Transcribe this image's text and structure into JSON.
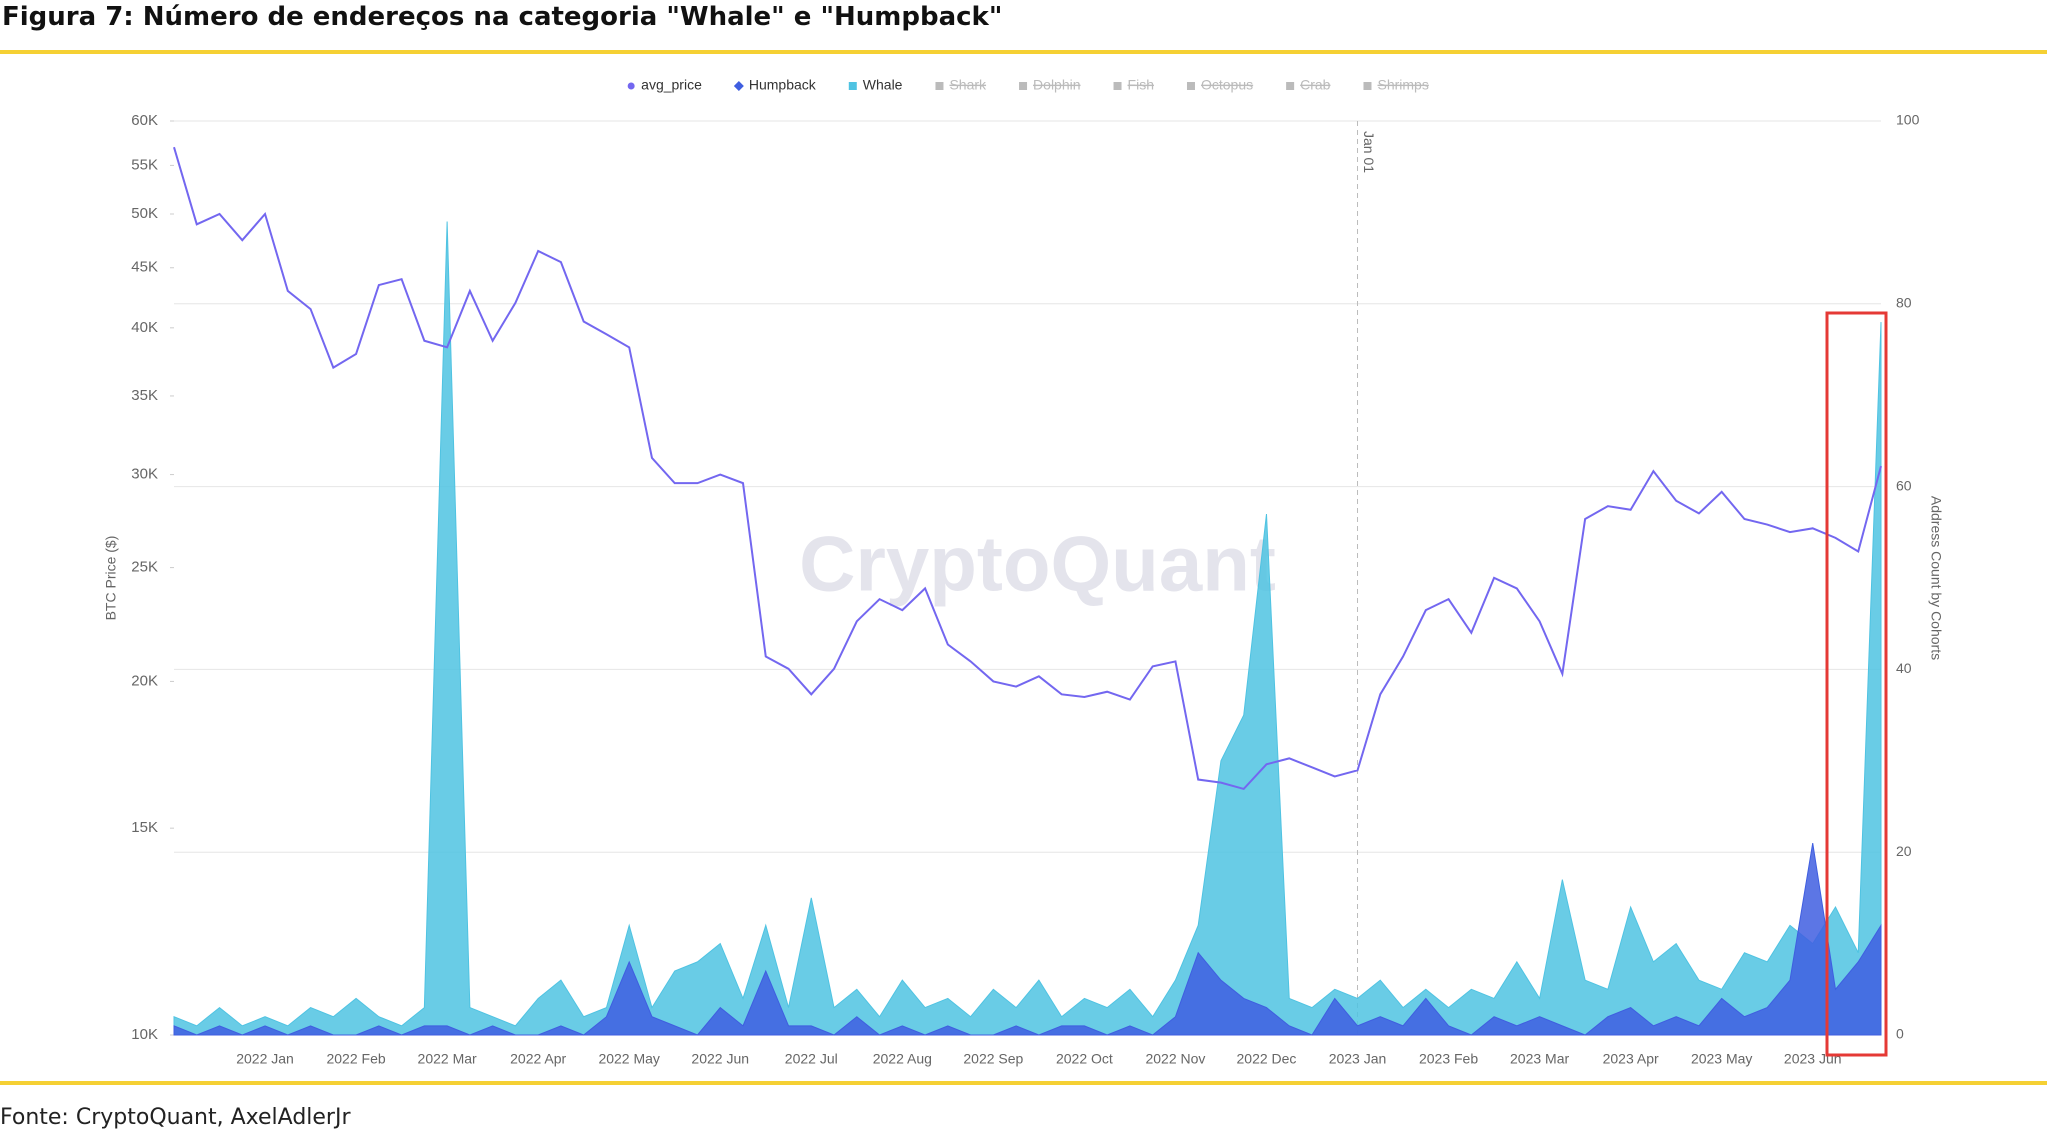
{
  "title": "Figura 7: Número de endereços na categoria \"Whale\" e \"Humpback\"",
  "source": "Fonte: CryptoQuant, AxelAdlerJr",
  "chart_data": {
    "type": "line-area",
    "watermark": "CryptoQuant",
    "ylabel": "BTC Price ($)",
    "y2label": "Address Count by Cohorts",
    "categories": [
      null,
      null,
      null,
      null,
      "2022 Jan",
      null,
      null,
      null,
      "2022 Feb",
      null,
      null,
      null,
      "2022 Mar",
      null,
      null,
      null,
      "2022 Apr",
      null,
      null,
      null,
      "2022 May",
      null,
      null,
      null,
      "2022 Jun",
      null,
      null,
      null,
      "2022 Jul",
      null,
      null,
      null,
      "2022 Aug",
      null,
      null,
      null,
      "2022 Sep",
      null,
      null,
      null,
      "2022 Oct",
      null,
      null,
      null,
      "2022 Nov",
      null,
      null,
      null,
      "2022 Dec",
      null,
      null,
      null,
      "2023 Jan",
      null,
      null,
      null,
      "2023 Feb",
      null,
      null,
      null,
      "2023 Mar",
      null,
      null,
      null,
      "2023 Apr",
      null,
      null,
      null,
      "2023 May",
      null,
      null,
      null,
      "2023 Jun",
      null,
      null,
      null
    ],
    "series": [
      {
        "name": "avg_price",
        "color": "#7367f0",
        "style": "line",
        "axis": "y",
        "values": [
          57000,
          49000,
          50000,
          47500,
          50000,
          43000,
          41500,
          37000,
          38000,
          43500,
          44000,
          39000,
          38500,
          43000,
          39000,
          42000,
          46500,
          45500,
          40500,
          39500,
          38500,
          31000,
          29500,
          29500,
          30000,
          29500,
          21000,
          20500,
          19500,
          20500,
          22500,
          23500,
          23000,
          24000,
          21500,
          20800,
          20000,
          19800,
          20200,
          19500,
          19400,
          19600,
          19300,
          20600,
          20800,
          16500,
          16400,
          16200,
          17000,
          17200,
          16900,
          16600,
          16800,
          19500,
          21000,
          23000,
          23500,
          22000,
          24500,
          24000,
          22500,
          20300,
          27500,
          28200,
          28000,
          30200,
          28500,
          27800,
          29000,
          27500,
          27200,
          26800,
          27000,
          26500,
          25800,
          30500
        ]
      },
      {
        "name": "Humpback",
        "color": "#3f5ee0",
        "style": "area",
        "axis": "y2",
        "values": [
          1,
          0,
          1,
          0,
          1,
          0,
          1,
          0,
          0,
          1,
          0,
          1,
          1,
          0,
          1,
          0,
          0,
          1,
          0,
          2,
          8,
          2,
          1,
          0,
          3,
          1,
          7,
          1,
          1,
          0,
          2,
          0,
          1,
          0,
          1,
          0,
          0,
          1,
          0,
          1,
          1,
          0,
          1,
          0,
          2,
          9,
          6,
          4,
          3,
          1,
          0,
          4,
          1,
          2,
          1,
          4,
          1,
          0,
          2,
          1,
          2,
          1,
          0,
          2,
          3,
          1,
          2,
          1,
          4,
          2,
          3,
          6,
          21,
          5,
          8,
          12
        ]
      },
      {
        "name": "Whale",
        "color": "#4fc3e2",
        "style": "area",
        "axis": "y2",
        "values": [
          2,
          1,
          3,
          1,
          2,
          1,
          3,
          2,
          4,
          2,
          1,
          3,
          89,
          3,
          2,
          1,
          4,
          6,
          2,
          3,
          12,
          3,
          7,
          8,
          10,
          4,
          12,
          3,
          15,
          3,
          5,
          2,
          6,
          3,
          4,
          2,
          5,
          3,
          6,
          2,
          4,
          3,
          5,
          2,
          6,
          12,
          30,
          35,
          57,
          4,
          3,
          5,
          4,
          6,
          3,
          5,
          3,
          5,
          4,
          8,
          4,
          17,
          6,
          5,
          14,
          8,
          10,
          6,
          5,
          9,
          8,
          12,
          10,
          14,
          9,
          78
        ]
      }
    ],
    "hidden_series": [
      "Shark",
      "Dolphin",
      "Fish",
      "Octopus",
      "Crab",
      "Shrimps"
    ],
    "ylog": true,
    "ylim": [
      10000,
      60000
    ],
    "yticks": [
      {
        "value": 10000,
        "label": "10K"
      },
      {
        "value": 15000,
        "label": "15K"
      },
      {
        "value": 20000,
        "label": "20K"
      },
      {
        "value": 25000,
        "label": "25K"
      },
      {
        "value": 30000,
        "label": "30K"
      },
      {
        "value": 35000,
        "label": "35K"
      },
      {
        "value": 40000,
        "label": "40K"
      },
      {
        "value": 45000,
        "label": "45K"
      },
      {
        "value": 50000,
        "label": "50K"
      },
      {
        "value": 55000,
        "label": "55K"
      },
      {
        "value": 60000,
        "label": "60K"
      }
    ],
    "y2lim": [
      0,
      100
    ],
    "y2ticks": [
      0,
      20,
      40,
      60,
      80,
      100
    ],
    "grid": true,
    "annotation": {
      "text": "Jan 01",
      "category": "2023 Jan"
    }
  }
}
